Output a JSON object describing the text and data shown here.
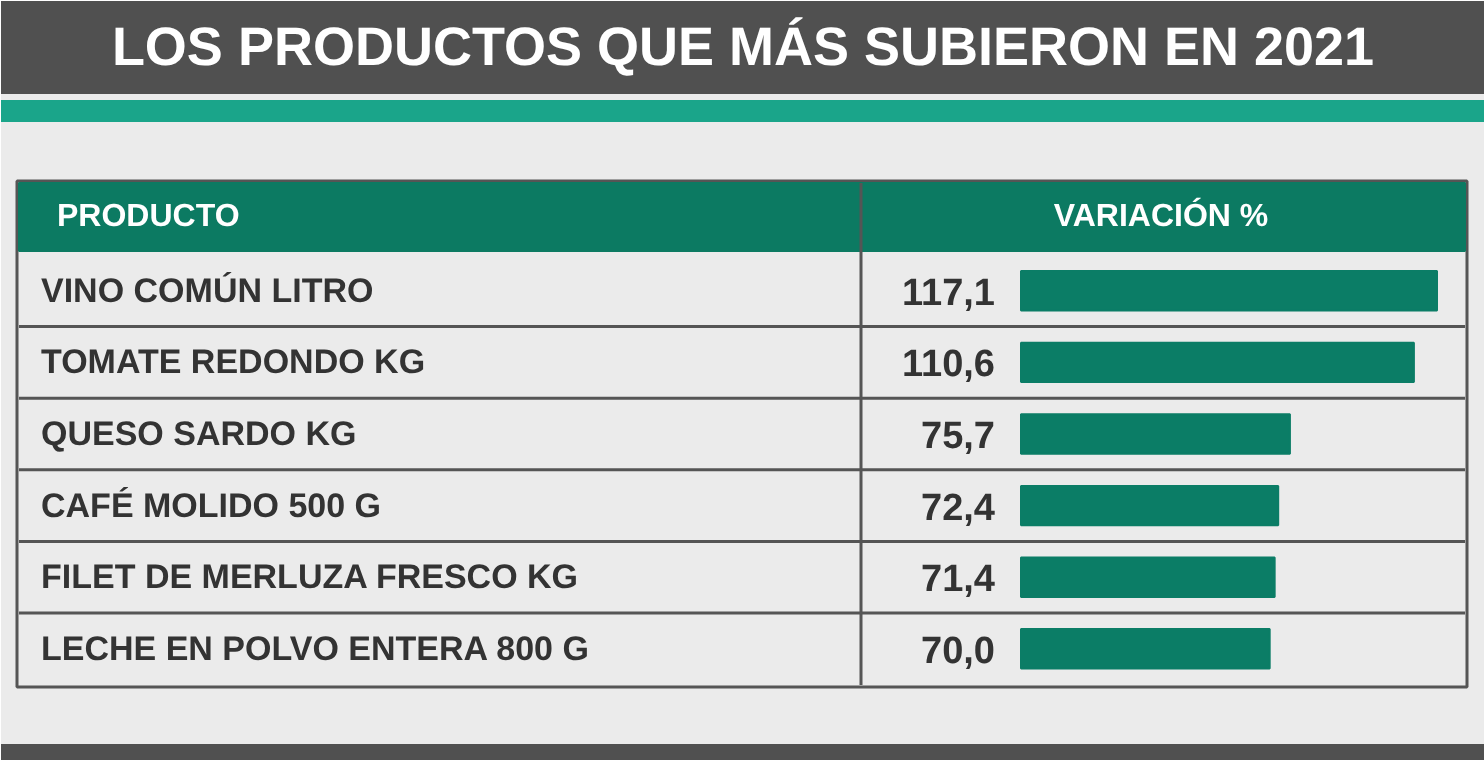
{
  "chart_data": {
    "type": "bar",
    "orientation": "horizontal",
    "title": "LOS PRODUCTOS QUE MÁS SUBIERON EN 2021",
    "ylabel": "PRODUCTO",
    "xlabel": "VARIACIÓN %",
    "categories": [
      "VINO COMÚN LITRO",
      "TOMATE REDONDO KG",
      "QUESO SARDO KG",
      "CAFÉ MOLIDO 500 G",
      "FILET DE MERLUZA FRESCO KG",
      "LECHE EN POLVO ENTERA 800 G"
    ],
    "values": [
      117.1,
      110.6,
      75.7,
      72.4,
      71.4,
      70.0
    ],
    "value_labels": [
      "117,1",
      "110,6",
      "75,7",
      "72,4",
      "71,4",
      "70,0"
    ],
    "color": "#0b7d66",
    "xlim": [
      0,
      117.1
    ]
  }
}
